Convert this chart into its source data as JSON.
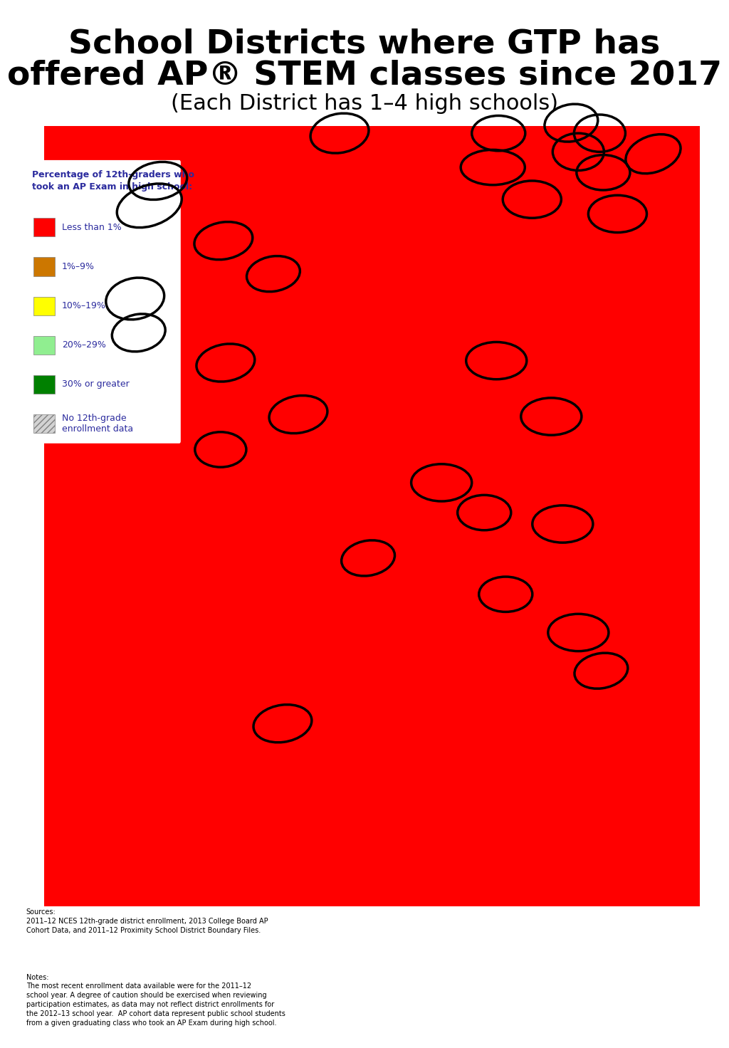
{
  "title_line1": "School Districts where GTP has",
  "title_line2": "offered AP® STEM classes since 2017",
  "subtitle": "(Each District has 1–4 high schools)",
  "legend_title": "Percentage of 12th-graders who\ntook an AP Exam in high school:",
  "legend_items": [
    {
      "label": "Less than 1%",
      "color": "#ff0000"
    },
    {
      "label": "1%–9%",
      "color": "#cc7700"
    },
    {
      "label": "10%–19%",
      "color": "#ffff00"
    },
    {
      "label": "20%–29%",
      "color": "#90ee90"
    },
    {
      "label": "30% or greater",
      "color": "#008000"
    },
    {
      "label": "No 12th-grade\nenrollment data",
      "color": "#d3d3d3",
      "hatch": "////"
    }
  ],
  "sources_text": "Sources:\n2011–12 NCES 12th-grade district enrollment, 2013 College Board AP\nCohort Data, and 2011–12 Proximity School District Boundary Files.",
  "notes_text": "Notes:\nThe most recent enrollment data available were for the 2011–12\nschool year. A degree of caution should be exercised when reviewing\nparticipation estimates, as data may not reflect district enrollments for\nthe 2012–13 school year.  AP cohort data represent public school students\nfrom a given graduating class who took an AP Exam during high school.",
  "background_color": "#ffffff",
  "title_color": "#000000",
  "subtitle_color": "#000000",
  "legend_title_color": "#2b2b9e",
  "legend_label_color": "#2b2b9e",
  "sources_notes_color": "#000000",
  "fig_width": 10.01,
  "fig_height": 14.52,
  "dpi": 100,
  "ellipses_norm": [
    [
      0.68,
      0.845,
      0.09,
      0.034,
      0
    ],
    [
      0.835,
      0.84,
      0.075,
      0.034,
      0
    ],
    [
      0.905,
      0.858,
      0.078,
      0.036,
      10
    ],
    [
      0.8,
      0.86,
      0.072,
      0.036,
      0
    ],
    [
      0.83,
      0.878,
      0.072,
      0.036,
      0
    ],
    [
      0.688,
      0.878,
      0.075,
      0.034,
      0
    ],
    [
      0.79,
      0.888,
      0.075,
      0.036,
      5
    ],
    [
      0.465,
      0.878,
      0.082,
      0.038,
      5
    ],
    [
      0.198,
      0.808,
      0.092,
      0.04,
      10
    ],
    [
      0.21,
      0.832,
      0.082,
      0.036,
      5
    ],
    [
      0.735,
      0.814,
      0.082,
      0.036,
      0
    ],
    [
      0.855,
      0.8,
      0.082,
      0.036,
      0
    ],
    [
      0.302,
      0.774,
      0.082,
      0.036,
      5
    ],
    [
      0.372,
      0.742,
      0.075,
      0.034,
      5
    ],
    [
      0.178,
      0.718,
      0.082,
      0.04,
      5
    ],
    [
      0.183,
      0.685,
      0.075,
      0.036,
      5
    ],
    [
      0.305,
      0.656,
      0.082,
      0.036,
      5
    ],
    [
      0.685,
      0.658,
      0.085,
      0.036,
      0
    ],
    [
      0.407,
      0.606,
      0.082,
      0.036,
      5
    ],
    [
      0.298,
      0.572,
      0.072,
      0.034,
      0
    ],
    [
      0.762,
      0.604,
      0.085,
      0.036,
      0
    ],
    [
      0.608,
      0.54,
      0.085,
      0.036,
      0
    ],
    [
      0.668,
      0.511,
      0.075,
      0.034,
      0
    ],
    [
      0.778,
      0.5,
      0.085,
      0.036,
      0
    ],
    [
      0.505,
      0.467,
      0.075,
      0.034,
      5
    ],
    [
      0.698,
      0.432,
      0.075,
      0.034,
      0
    ],
    [
      0.8,
      0.395,
      0.085,
      0.036,
      0
    ],
    [
      0.832,
      0.358,
      0.075,
      0.034,
      5
    ],
    [
      0.385,
      0.307,
      0.082,
      0.036,
      5
    ]
  ]
}
